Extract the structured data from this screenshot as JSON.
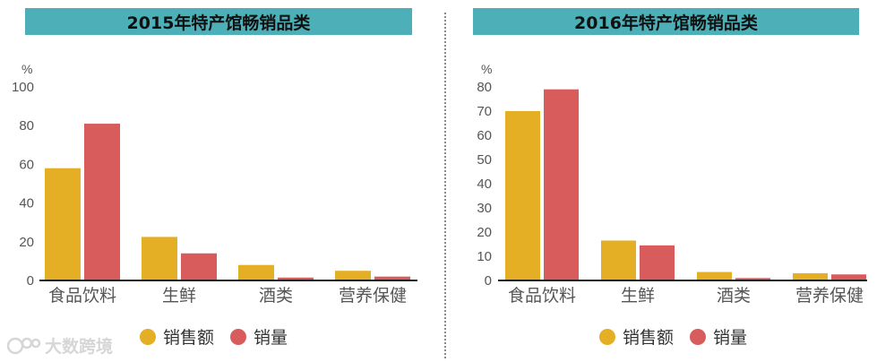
{
  "colors": {
    "sales_amount": "#e4ae25",
    "sales_volume": "#d95c5c",
    "banner": "#4db0b8"
  },
  "watermark": {
    "text": "大数跨境",
    "icon": "logo-icon"
  },
  "legend": {
    "sales_amount": "销售额",
    "sales_volume": "销量"
  },
  "chart_data": [
    {
      "type": "bar",
      "title": "2015年特产馆畅销品类",
      "ylabel": "%",
      "ylim": [
        0,
        100
      ],
      "yticks": [
        "0",
        "20",
        "40",
        "60",
        "80",
        "100"
      ],
      "categories": [
        "食品饮料",
        "生鲜",
        "酒类",
        "营养保健"
      ],
      "series": [
        {
          "name": "销售额",
          "values": [
            58,
            22.5,
            8,
            5
          ]
        },
        {
          "name": "销量",
          "values": [
            81,
            14,
            1.5,
            2
          ]
        }
      ]
    },
    {
      "type": "bar",
      "title": "2016年特产馆畅销品类",
      "ylabel": "%",
      "ylim": [
        0,
        80
      ],
      "yticks": [
        "0",
        "10",
        "20",
        "30",
        "40",
        "50",
        "60",
        "70",
        "80"
      ],
      "categories": [
        "食品饮料",
        "生鲜",
        "酒类",
        "营养保健"
      ],
      "series": [
        {
          "name": "销售额",
          "values": [
            70,
            16.5,
            3.5,
            3
          ]
        },
        {
          "name": "销量",
          "values": [
            79,
            14.5,
            1,
            2.5
          ]
        }
      ]
    }
  ]
}
